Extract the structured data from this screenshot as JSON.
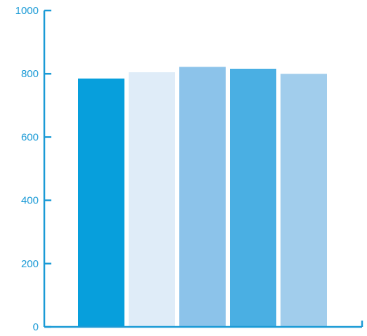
{
  "chart_data": {
    "type": "bar",
    "categories": [
      "",
      "",
      "",
      "",
      ""
    ],
    "values": [
      785,
      805,
      822,
      816,
      800
    ],
    "colors": [
      "#079fdc",
      "#dfecf8",
      "#8cc3ea",
      "#4aafe3",
      "#a1cdec"
    ],
    "axis_color": "#1a9ad6",
    "title": "",
    "xlabel": "",
    "ylabel": "",
    "ylim": [
      0,
      1000
    ],
    "yticks": [
      0,
      200,
      400,
      600,
      800,
      1000
    ],
    "ytick_labels": [
      "0",
      "200",
      "400",
      "600",
      "800",
      "1000"
    ],
    "grid": false,
    "legend": "none"
  }
}
